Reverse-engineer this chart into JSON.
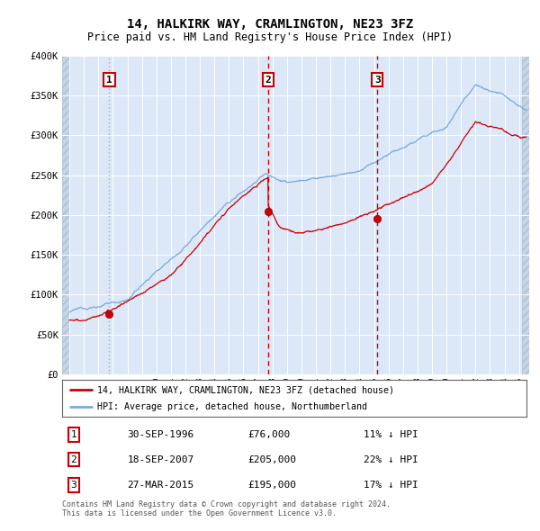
{
  "title": "14, HALKIRK WAY, CRAMLINGTON, NE23 3FZ",
  "subtitle": "Price paid vs. HM Land Registry's House Price Index (HPI)",
  "hpi_color": "#7aaadd",
  "sale_color": "#cc0000",
  "vline_color_red": "#cc0000",
  "vline_color_gray": "#aaaaaa",
  "bg_color": "#dce8f8",
  "ylim": [
    0,
    400000
  ],
  "yticks": [
    0,
    50000,
    100000,
    150000,
    200000,
    250000,
    300000,
    350000,
    400000
  ],
  "ytick_labels": [
    "£0",
    "£50K",
    "£100K",
    "£150K",
    "£200K",
    "£250K",
    "£300K",
    "£350K",
    "£400K"
  ],
  "sales": [
    {
      "date": 1996.75,
      "price": 76000,
      "label": "1",
      "vline_style": "gray"
    },
    {
      "date": 2007.71,
      "price": 205000,
      "label": "2",
      "vline_style": "red"
    },
    {
      "date": 2015.23,
      "price": 195000,
      "label": "3",
      "vline_style": "red"
    }
  ],
  "legend_entries": [
    "14, HALKIRK WAY, CRAMLINGTON, NE23 3FZ (detached house)",
    "HPI: Average price, detached house, Northumberland"
  ],
  "table_rows": [
    [
      "1",
      "30-SEP-1996",
      "£76,000",
      "11% ↓ HPI"
    ],
    [
      "2",
      "18-SEP-2007",
      "£205,000",
      "22% ↓ HPI"
    ],
    [
      "3",
      "27-MAR-2015",
      "£195,000",
      "17% ↓ HPI"
    ]
  ],
  "footer": "Contains HM Land Registry data © Crown copyright and database right 2024.\nThis data is licensed under the Open Government Licence v3.0.",
  "xlim_start": 1993.5,
  "xlim_end": 2025.7
}
